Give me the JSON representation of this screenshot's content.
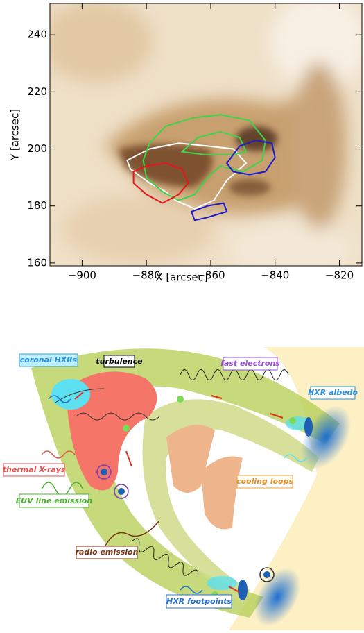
{
  "chart_data": {
    "type": "contour",
    "xlabel": "X [arcsec]",
    "ylabel": "Y [arcsec]",
    "xlim": [
      -910,
      -813
    ],
    "ylim": [
      159,
      251
    ],
    "xticks": [
      {
        "value": -900,
        "label": "−900"
      },
      {
        "value": -880,
        "label": "−880"
      },
      {
        "value": -860,
        "label": "−860"
      },
      {
        "value": -840,
        "label": "−840"
      },
      {
        "value": -820,
        "label": "−820"
      }
    ],
    "yticks": [
      160,
      180,
      200,
      220,
      240
    ],
    "series": [
      {
        "color": "#ffffff",
        "x": [
          -886,
          -879,
          -870,
          -861,
          -853,
          -849,
          -855,
          -859,
          -865,
          -871,
          -874,
          -879,
          -885
        ],
        "y": [
          196,
          200,
          202,
          201,
          200,
          195,
          189,
          182,
          179,
          182,
          185,
          188,
          193
        ]
      },
      {
        "color": "#3fd34a",
        "x": [
          -879,
          -874,
          -865,
          -857,
          -848,
          -843,
          -844,
          -850,
          -857,
          -861,
          -865,
          -870,
          -875,
          -880,
          -881
        ],
        "y": [
          202,
          208,
          211,
          212,
          210,
          203,
          196,
          192,
          194,
          190,
          184,
          182,
          185,
          190,
          196
        ]
      },
      {
        "color": "#3fd34a",
        "x": [
          -869,
          -864,
          -857,
          -851,
          -849,
          -853,
          -862
        ],
        "y": [
          199,
          204,
          206,
          204,
          199,
          198,
          198
        ]
      },
      {
        "color": "#e8141b",
        "x": [
          -884,
          -880,
          -874,
          -869,
          -867,
          -870,
          -875,
          -880,
          -884
        ],
        "y": [
          192,
          194,
          195,
          193,
          188,
          184,
          181,
          184,
          188
        ]
      },
      {
        "color": "#1a1ad0",
        "x": [
          -855,
          -851,
          -846,
          -841,
          -840,
          -843,
          -848,
          -853
        ],
        "y": [
          195,
          201,
          203,
          202,
          197,
          192,
          191,
          192
        ]
      },
      {
        "color": "#1a1ad0",
        "x": [
          -866,
          -861,
          -856,
          -855,
          -861,
          -865
        ],
        "y": [
          178,
          180,
          181,
          178,
          176,
          175
        ]
      }
    ]
  },
  "diagram": {
    "coronal_hxrs": "coronal HXRs",
    "turbulence": "turbulence",
    "fast_electrons": "fast electrons",
    "hxr_albedo": "HXR albedo",
    "thermal_xrays": "thermal X-rays",
    "cooling_loops": "cooling loops",
    "euv_line_emission": "EUV line emission",
    "radio_emission": "radio emission",
    "hxr_footpoints": "HXR footpoints"
  }
}
